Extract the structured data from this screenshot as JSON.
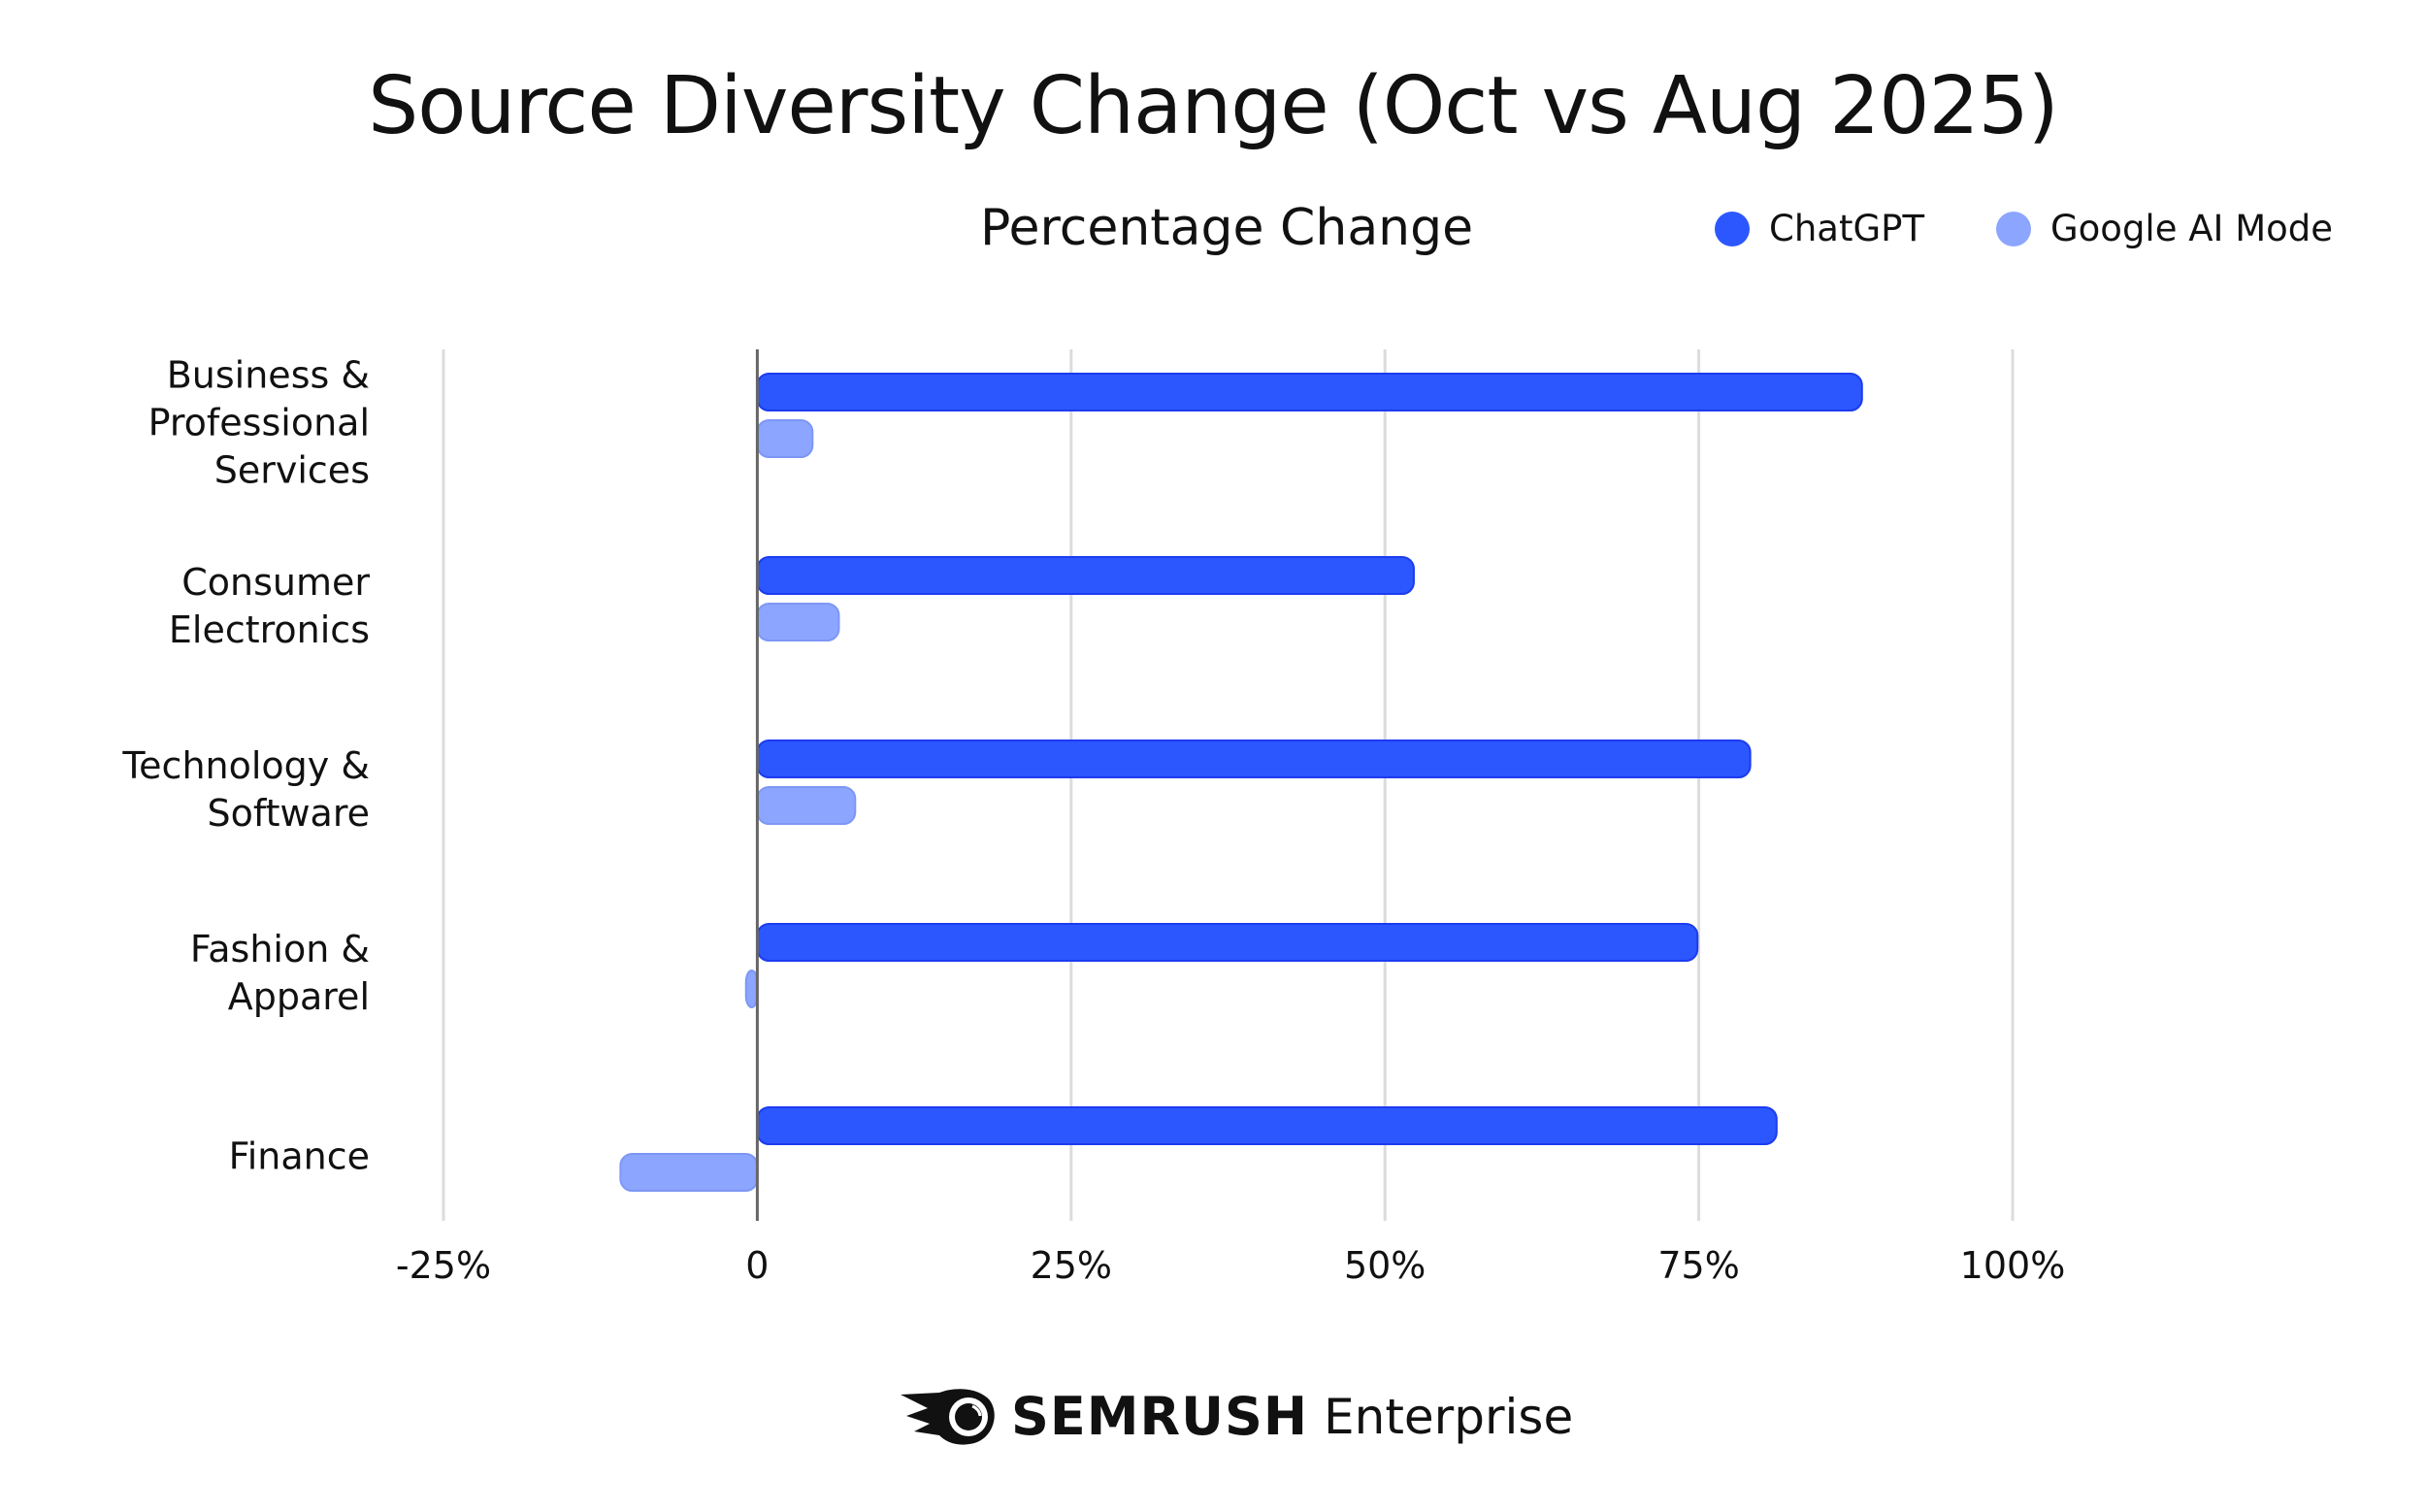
{
  "chart_data": {
    "type": "bar",
    "orientation": "horizontal",
    "title": "Source Diversity Change (Oct vs Aug 2025)",
    "subtitle": "Percentage Change",
    "categories": [
      "Business &\nProfessional\nServices",
      "Consumer\nElectronics",
      "Technology &\nSoftware",
      "Fashion  &\nApparel",
      "Finance"
    ],
    "series": [
      {
        "name": "ChatGPT",
        "color": "#2c57ff",
        "values": [
          88.0,
          52.3,
          79.1,
          74.9,
          81.2
        ]
      },
      {
        "name": "Google AI Mode",
        "color": "#8ca5ff",
        "values": [
          4.4,
          6.5,
          7.8,
          -0.9,
          -10.9
        ]
      }
    ],
    "xlim": [
      -25,
      100
    ],
    "xticks": [
      "-25%",
      "0",
      "25%",
      "50%",
      "75%",
      "100%"
    ],
    "xtick_values": [
      -25,
      0,
      25,
      50,
      75,
      100
    ],
    "grid": true,
    "legend_position": "top-right"
  },
  "footer": {
    "brand": "SEMRUSH",
    "product": "Enterprise",
    "logo_icon": "semrush-fireball-icon"
  }
}
